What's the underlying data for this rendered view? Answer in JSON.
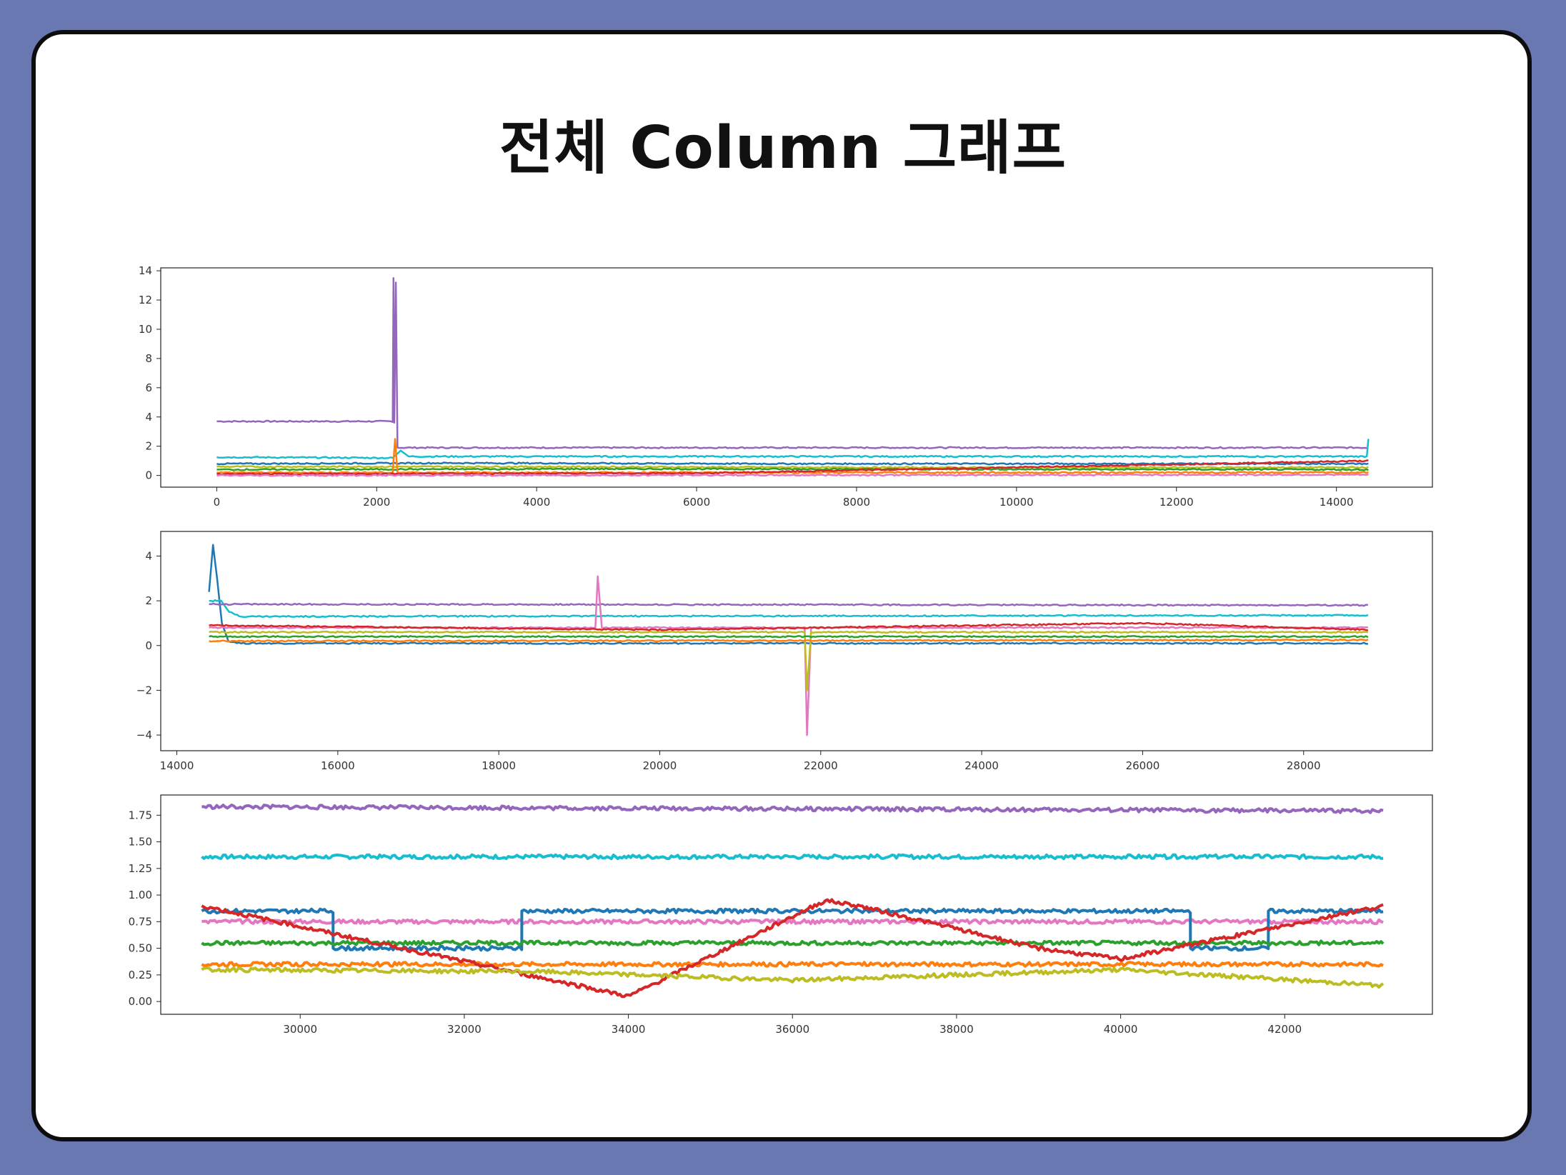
{
  "slide": {
    "title": "전체 Column 그래프",
    "colors": {
      "background": "#6a78b2",
      "card": "#ffffff",
      "border": "#0d0d0d"
    }
  },
  "chart_data": [
    {
      "type": "line",
      "title": "",
      "xlabel": "",
      "ylabel": "",
      "xlim": [
        -700,
        15200
      ],
      "ylim": [
        -0.8,
        14.2
      ],
      "xticks": [
        0,
        2000,
        4000,
        6000,
        8000,
        10000,
        12000,
        14000
      ],
      "yticks": [
        0,
        2,
        4,
        6,
        8,
        10,
        12,
        14
      ],
      "data_x_range": [
        0,
        14400
      ],
      "series": [
        {
          "color": "#9467bd",
          "x": [
            0,
            2200,
            2210,
            2220,
            2240,
            2260,
            14400
          ],
          "y": [
            3.7,
            3.7,
            13.5,
            3.6,
            13.2,
            1.9,
            1.9
          ]
        },
        {
          "color": "#17becf",
          "x": [
            0,
            2200,
            2300,
            2400,
            14380,
            14400
          ],
          "y": [
            1.25,
            1.2,
            1.7,
            1.3,
            1.3,
            2.5
          ]
        },
        {
          "color": "#1f77b4",
          "x": [
            0,
            3000,
            7000,
            14400
          ],
          "y": [
            0.8,
            0.85,
            0.8,
            0.8
          ]
        },
        {
          "color": "#bcbd22",
          "x": [
            0,
            4000,
            8000,
            14400
          ],
          "y": [
            0.6,
            0.6,
            0.55,
            0.55
          ]
        },
        {
          "color": "#2ca02c",
          "x": [
            0,
            5000,
            14400
          ],
          "y": [
            0.4,
            0.45,
            0.4
          ]
        },
        {
          "color": "#ff7f0e",
          "x": [
            0,
            2200,
            2230,
            2260,
            14400
          ],
          "y": [
            0.2,
            0.2,
            2.5,
            0.2,
            0.2
          ]
        },
        {
          "color": "#d62728",
          "x": [
            0,
            6000,
            14400
          ],
          "y": [
            0.1,
            0.15,
            1.0
          ]
        },
        {
          "color": "#e377c2",
          "x": [
            0,
            14400
          ],
          "y": [
            0.0,
            0.05
          ]
        }
      ]
    },
    {
      "type": "line",
      "title": "",
      "xlabel": "",
      "ylabel": "",
      "xlim": [
        13800,
        29600
      ],
      "ylim": [
        -4.7,
        5.1
      ],
      "xticks": [
        14000,
        16000,
        18000,
        20000,
        22000,
        24000,
        26000,
        28000
      ],
      "yticks": [
        -4,
        -2,
        0,
        2,
        4
      ],
      "data_x_range": [
        14400,
        28800
      ],
      "series": [
        {
          "color": "#1f77b4",
          "x": [
            14400,
            14450,
            14500,
            14560,
            14640,
            14800,
            28800
          ],
          "y": [
            2.4,
            4.5,
            3.0,
            1.0,
            0.2,
            0.1,
            0.1
          ]
        },
        {
          "color": "#17becf",
          "x": [
            14400,
            14550,
            14650,
            14800,
            28800
          ],
          "y": [
            2.0,
            2.0,
            1.5,
            1.3,
            1.35
          ]
        },
        {
          "color": "#9467bd",
          "x": [
            14400,
            28800
          ],
          "y": [
            1.85,
            1.8
          ]
        },
        {
          "color": "#e377c2",
          "x": [
            14400,
            19200,
            19230,
            19280,
            21800,
            21830,
            21880,
            28800
          ],
          "y": [
            0.8,
            0.8,
            3.1,
            0.8,
            0.8,
            -4.0,
            0.8,
            0.8
          ]
        },
        {
          "color": "#bcbd22",
          "x": [
            14400,
            21800,
            21830,
            21880,
            28800
          ],
          "y": [
            0.6,
            0.6,
            -2.0,
            0.6,
            0.6
          ]
        },
        {
          "color": "#d62728",
          "x": [
            14400,
            20000,
            26000,
            28800
          ],
          "y": [
            0.9,
            0.7,
            1.0,
            0.7
          ]
        },
        {
          "color": "#2ca02c",
          "x": [
            14400,
            28800
          ],
          "y": [
            0.4,
            0.4
          ]
        },
        {
          "color": "#ff7f0e",
          "x": [
            14400,
            28800
          ],
          "y": [
            0.2,
            0.25
          ]
        }
      ]
    },
    {
      "type": "line",
      "title": "",
      "xlabel": "",
      "ylabel": "",
      "xlim": [
        28300,
        43800
      ],
      "ylim": [
        -0.12,
        1.94
      ],
      "xticks": [
        30000,
        32000,
        34000,
        36000,
        38000,
        40000,
        42000
      ],
      "yticks": [
        0.0,
        0.25,
        0.5,
        0.75,
        1.0,
        1.25,
        1.5,
        1.75
      ],
      "data_x_range": [
        28800,
        43200
      ],
      "series": [
        {
          "color": "#9467bd",
          "x": [
            28800,
            43200
          ],
          "y": [
            1.83,
            1.79
          ]
        },
        {
          "color": "#17becf",
          "x": [
            28800,
            43200
          ],
          "y": [
            1.36,
            1.36
          ]
        },
        {
          "color": "#e377c2",
          "x": [
            28800,
            43200
          ],
          "y": [
            0.75,
            0.75
          ]
        },
        {
          "color": "#ff7f0e",
          "x": [
            28800,
            43200
          ],
          "y": [
            0.35,
            0.35
          ]
        },
        {
          "color": "#1f77b4",
          "x": [
            28800,
            30400,
            30401,
            32700,
            32701,
            40850,
            40851,
            41800,
            41801,
            43200
          ],
          "y": [
            0.85,
            0.85,
            0.5,
            0.5,
            0.85,
            0.85,
            0.5,
            0.5,
            0.85,
            0.85
          ]
        },
        {
          "color": "#2ca02c",
          "x": [
            28800,
            43200
          ],
          "y": [
            0.55,
            0.55
          ]
        },
        {
          "color": "#d62728",
          "x": [
            28800,
            34000,
            36400,
            36800,
            39000,
            40000,
            43200
          ],
          "y": [
            0.9,
            0.05,
            0.95,
            0.9,
            0.5,
            0.4,
            0.9
          ]
        },
        {
          "color": "#bcbd22",
          "x": [
            28800,
            33000,
            36000,
            40000,
            43200
          ],
          "y": [
            0.3,
            0.28,
            0.2,
            0.3,
            0.15
          ]
        }
      ]
    }
  ]
}
